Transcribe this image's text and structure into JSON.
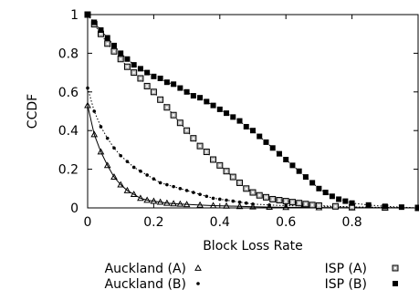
{
  "chart_data": {
    "type": "line",
    "title": "",
    "xlabel": "Block Loss Rate",
    "ylabel": "CCDF",
    "xlim": [
      0,
      1
    ],
    "ylim": [
      0,
      1
    ],
    "x_ticks": [
      0,
      0.2,
      0.4,
      0.6,
      0.8
    ],
    "x_tick_labels": [
      "0",
      "0.2",
      "0.4",
      "0.6",
      "0.8"
    ],
    "y_ticks": [
      0,
      0.2,
      0.4,
      0.6,
      0.8,
      1
    ],
    "y_tick_labels": [
      "0",
      "0.2",
      "0.4",
      "0.6",
      "0.8",
      "1"
    ],
    "grid": false,
    "legend_position": "bottom",
    "series": [
      {
        "name": "Auckland (A)",
        "marker": "triangle",
        "line": "solid",
        "x": [
          0,
          0.02,
          0.04,
          0.06,
          0.08,
          0.1,
          0.12,
          0.14,
          0.16,
          0.18,
          0.2,
          0.22,
          0.24,
          0.26,
          0.28,
          0.3,
          0.34,
          0.38,
          0.42,
          0.46,
          0.5,
          0.55,
          0.6,
          0.7,
          0.8,
          0.9,
          1.0
        ],
        "y": [
          0.53,
          0.38,
          0.29,
          0.22,
          0.16,
          0.12,
          0.09,
          0.07,
          0.05,
          0.04,
          0.035,
          0.03,
          0.025,
          0.022,
          0.02,
          0.018,
          0.015,
          0.012,
          0.01,
          0.008,
          0.006,
          0.004,
          0.003,
          0.002,
          0.001,
          0.0005,
          0.0
        ]
      },
      {
        "name": "Auckland (B)",
        "marker": "dot",
        "line": "dotted",
        "x": [
          0,
          0.02,
          0.04,
          0.06,
          0.08,
          0.1,
          0.12,
          0.14,
          0.16,
          0.18,
          0.2,
          0.22,
          0.24,
          0.26,
          0.28,
          0.3,
          0.32,
          0.34,
          0.36,
          0.38,
          0.4,
          0.42,
          0.44,
          0.46,
          0.48,
          0.5,
          0.55,
          0.6,
          0.65,
          0.7,
          0.8,
          0.9,
          1.0
        ],
        "y": [
          0.62,
          0.5,
          0.42,
          0.36,
          0.31,
          0.27,
          0.24,
          0.21,
          0.19,
          0.17,
          0.15,
          0.13,
          0.12,
          0.11,
          0.1,
          0.09,
          0.08,
          0.07,
          0.06,
          0.05,
          0.045,
          0.04,
          0.035,
          0.03,
          0.025,
          0.02,
          0.015,
          0.012,
          0.01,
          0.008,
          0.005,
          0.002,
          0.0
        ]
      },
      {
        "name": "ISP (A)",
        "marker": "square-open",
        "line": "dotted",
        "x": [
          0,
          0.02,
          0.04,
          0.06,
          0.08,
          0.1,
          0.12,
          0.14,
          0.16,
          0.18,
          0.2,
          0.22,
          0.24,
          0.26,
          0.28,
          0.3,
          0.32,
          0.34,
          0.36,
          0.38,
          0.4,
          0.42,
          0.44,
          0.46,
          0.48,
          0.5,
          0.52,
          0.54,
          0.56,
          0.58,
          0.6,
          0.62,
          0.64,
          0.66,
          0.68,
          0.7,
          0.75,
          0.8,
          0.9,
          1.0
        ],
        "y": [
          1.0,
          0.95,
          0.9,
          0.85,
          0.81,
          0.77,
          0.73,
          0.7,
          0.67,
          0.63,
          0.6,
          0.56,
          0.52,
          0.48,
          0.44,
          0.4,
          0.36,
          0.32,
          0.29,
          0.25,
          0.22,
          0.19,
          0.16,
          0.13,
          0.1,
          0.08,
          0.065,
          0.055,
          0.045,
          0.04,
          0.035,
          0.03,
          0.025,
          0.02,
          0.015,
          0.012,
          0.008,
          0.005,
          0.002,
          0.0
        ]
      },
      {
        "name": "ISP (B)",
        "marker": "square-filled",
        "line": "dotted",
        "x": [
          0,
          0.02,
          0.04,
          0.06,
          0.08,
          0.1,
          0.12,
          0.14,
          0.16,
          0.18,
          0.2,
          0.22,
          0.24,
          0.26,
          0.28,
          0.3,
          0.32,
          0.34,
          0.36,
          0.38,
          0.4,
          0.42,
          0.44,
          0.46,
          0.48,
          0.5,
          0.52,
          0.54,
          0.56,
          0.58,
          0.6,
          0.62,
          0.64,
          0.66,
          0.68,
          0.7,
          0.72,
          0.74,
          0.76,
          0.78,
          0.8,
          0.85,
          0.9,
          0.95,
          1.0
        ],
        "y": [
          1.0,
          0.96,
          0.92,
          0.88,
          0.84,
          0.8,
          0.77,
          0.74,
          0.72,
          0.7,
          0.68,
          0.67,
          0.65,
          0.64,
          0.62,
          0.6,
          0.58,
          0.57,
          0.55,
          0.53,
          0.51,
          0.49,
          0.47,
          0.45,
          0.42,
          0.4,
          0.37,
          0.34,
          0.31,
          0.28,
          0.25,
          0.22,
          0.19,
          0.16,
          0.13,
          0.1,
          0.08,
          0.06,
          0.045,
          0.035,
          0.025,
          0.015,
          0.008,
          0.004,
          0.0
        ]
      }
    ]
  }
}
